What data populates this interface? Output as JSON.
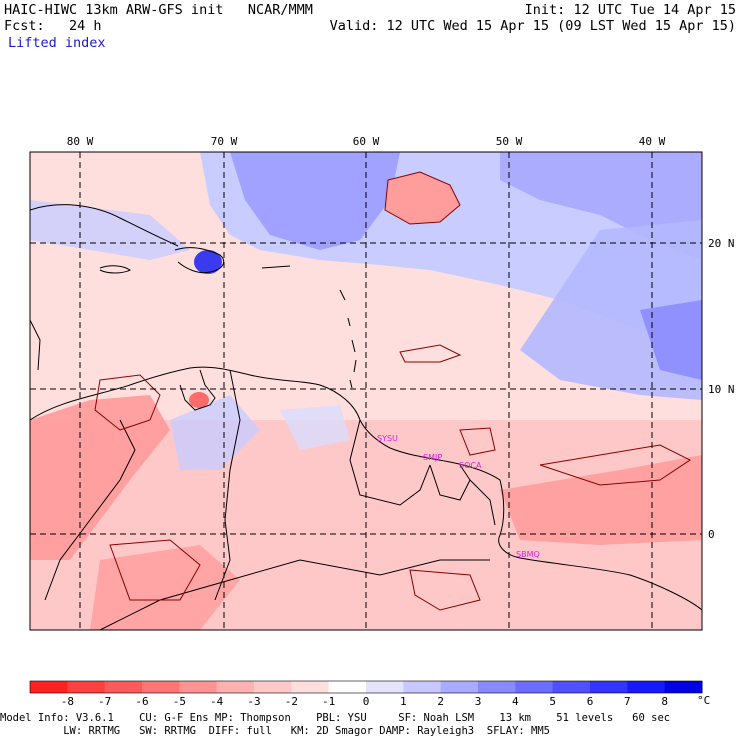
{
  "header": {
    "model_title": "HAIC-HIWC 13km ARW-GFS init   NCAR/MMM",
    "forecast": "Fcst:   24 h",
    "field": "Lifted index",
    "init": "Init: 12 UTC Tue 14 Apr 15",
    "valid": "Valid: 12 UTC Wed 15 Apr 15 (09 LST Wed 15 Apr 15)"
  },
  "map": {
    "lon_labels": [
      "80 W",
      "70 W",
      "60 W",
      "50 W",
      "40 W"
    ],
    "lat_labels": [
      "20 N",
      "10 N",
      "0"
    ],
    "stations": [
      "SYSU",
      "SMJP",
      "SOCA",
      "SBMQ"
    ],
    "station_color": "#e020e0"
  },
  "colorbar": {
    "ticks": [
      "-8",
      "-7",
      "-6",
      "-5",
      "-4",
      "-3",
      "-2",
      "-1",
      "0",
      "1",
      "2",
      "3",
      "4",
      "5",
      "6",
      "7",
      "8"
    ],
    "unit": "°C",
    "colors": [
      "#ff2020",
      "#ff4040",
      "#ff5a5a",
      "#ff7474",
      "#ff9292",
      "#ffb0b0",
      "#ffc8c8",
      "#ffdede",
      "#ffffff",
      "#e4e4ff",
      "#c8c8ff",
      "#aaaaff",
      "#8a8aff",
      "#6c6cff",
      "#5050ff",
      "#3434ff",
      "#1818ff",
      "#0000e8"
    ]
  },
  "footer": {
    "line1": "Model Info: V3.6.1    CU: G-F Ens MP: Thompson    PBL: YSU     SF: Noah LSM    13 km    51 levels   60 sec",
    "line2": "          LW: RRTMG   SW: RRTMG  DIFF: full   KM: 2D Smagor DAMP: Rayleigh3  SFLAY: MM5"
  }
}
